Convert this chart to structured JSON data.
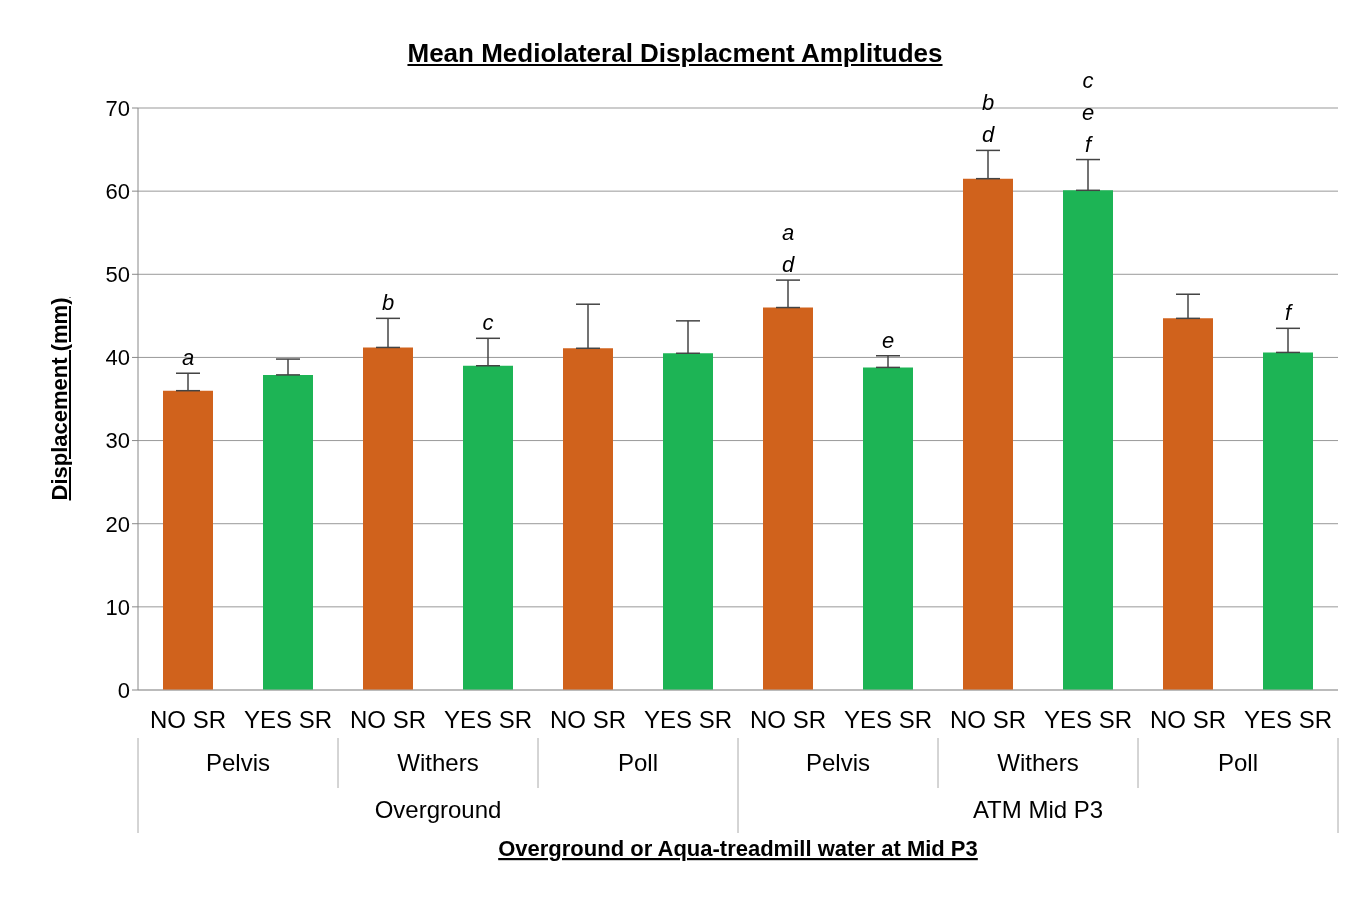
{
  "chart_data": {
    "type": "bar",
    "title": "Mean Mediolateral Displacment Amplitudes",
    "xlabel": "Overground or Aqua-treadmill water at Mid P3",
    "ylabel": "Displacement (mm)",
    "categories": [
      "NO SR",
      "YES SR",
      "NO SR",
      "YES SR",
      "NO SR",
      "YES SR",
      "NO SR",
      "YES SR",
      "NO SR",
      "YES SR",
      "NO SR",
      "YES SR"
    ],
    "values": [
      36,
      37.9,
      41.2,
      39.0,
      41.1,
      40.5,
      46.0,
      38.8,
      61.5,
      60.1,
      44.7,
      40.6
    ],
    "colors": [
      "#d0621c",
      "#1db455",
      "#d0621c",
      "#1db455",
      "#d0621c",
      "#1db455",
      "#d0621c",
      "#1db455",
      "#d0621c",
      "#1db455",
      "#d0621c",
      "#1db455"
    ],
    "errors": [
      [
        36,
        38.1
      ],
      [
        37.9,
        39.8
      ],
      [
        41.2,
        44.7
      ],
      [
        39.0,
        42.3
      ],
      [
        41.1,
        46.4
      ],
      [
        40.5,
        44.4
      ],
      [
        46.0,
        49.3
      ],
      [
        38.8,
        40.2
      ],
      [
        61.5,
        64.9
      ],
      [
        60.1,
        63.8
      ],
      [
        44.7,
        47.6
      ],
      [
        40.6,
        43.5
      ]
    ],
    "value_labels": [
      "a",
      null,
      "b",
      "c",
      null,
      null,
      "a\nd",
      "e",
      "b\nd",
      "c\ne\nf",
      null,
      "f"
    ],
    "annotations": [
      "Pelvis",
      "Withers",
      "Poll",
      "Pelvis",
      "Withers",
      "Poll",
      "Overground",
      "ATM Mid P3"
    ],
    "ylim": [
      0,
      70
    ],
    "yticks": [
      0,
      10,
      20,
      30,
      40,
      50,
      60,
      70
    ],
    "grid": "y",
    "legend": false
  }
}
